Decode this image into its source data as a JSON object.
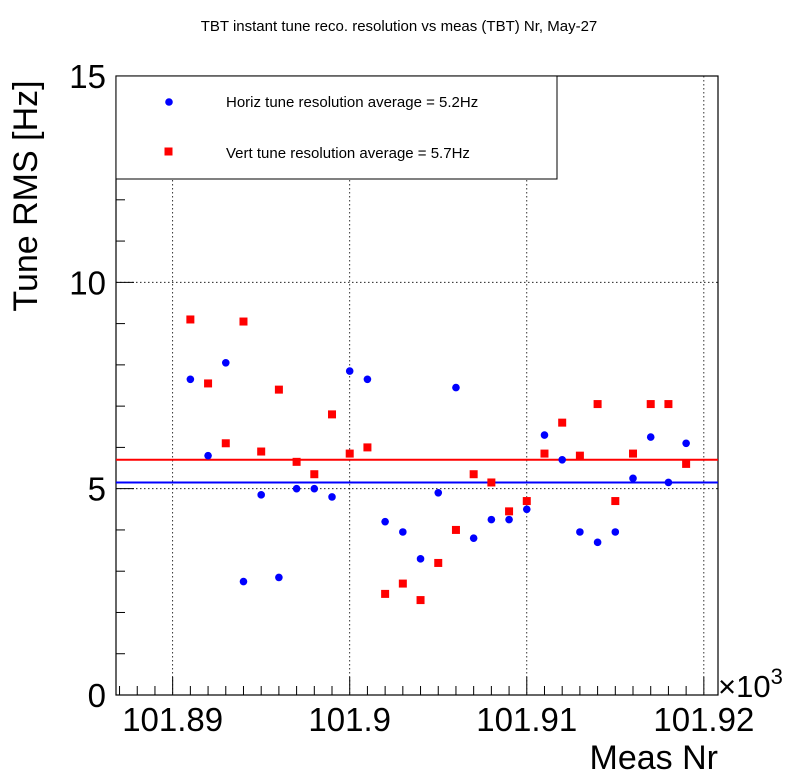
{
  "chart_data": {
    "type": "scatter",
    "title": "TBT instant tune reco. resolution vs meas (TBT) Nr, May-27",
    "xlabel": "Meas Nr",
    "ylabel": "Tune RMS [Hz]",
    "x_multiplier_label": "×10",
    "x_multiplier_exp": "3",
    "xlim": [
      101.8868,
      101.9208
    ],
    "ylim": [
      0,
      15
    ],
    "x_ticks": [
      101.89,
      101.9,
      101.91,
      101.92
    ],
    "x_tick_labels": [
      "101.89",
      "101.9",
      "101.91",
      "101.92"
    ],
    "y_ticks": [
      0,
      5,
      10,
      15
    ],
    "y_tick_labels": [
      "0",
      "5",
      "10",
      "15"
    ],
    "grid": true,
    "legend_position": "top-left",
    "series": [
      {
        "name": "Horiz tune resolution average = 5.2Hz",
        "color": "#0000ff",
        "marker": "circle",
        "average": 5.15,
        "x": [
          101.891,
          101.892,
          101.893,
          101.894,
          101.895,
          101.896,
          101.897,
          101.898,
          101.899,
          101.9,
          101.901,
          101.902,
          101.903,
          101.904,
          101.905,
          101.906,
          101.907,
          101.908,
          101.909,
          101.91,
          101.911,
          101.912,
          101.913,
          101.914,
          101.915,
          101.916,
          101.917,
          101.918,
          101.919
        ],
        "y": [
          7.65,
          5.8,
          8.05,
          2.75,
          4.85,
          2.85,
          5.0,
          5.0,
          4.8,
          7.85,
          7.65,
          4.2,
          3.95,
          3.3,
          4.9,
          7.45,
          3.8,
          4.25,
          4.25,
          4.5,
          6.3,
          5.7,
          3.95,
          3.7,
          3.95,
          5.25,
          6.25,
          5.15,
          6.1
        ]
      },
      {
        "name": "Vert tune resolution average = 5.7Hz",
        "color": "#ff0000",
        "marker": "square",
        "average": 5.7,
        "x": [
          101.891,
          101.892,
          101.893,
          101.894,
          101.895,
          101.896,
          101.897,
          101.898,
          101.899,
          101.9,
          101.901,
          101.902,
          101.903,
          101.904,
          101.905,
          101.906,
          101.907,
          101.908,
          101.909,
          101.91,
          101.911,
          101.912,
          101.913,
          101.914,
          101.915,
          101.916,
          101.917,
          101.918,
          101.919
        ],
        "y": [
          9.1,
          7.55,
          6.1,
          9.05,
          5.9,
          7.4,
          5.65,
          5.35,
          6.8,
          5.85,
          6.0,
          2.45,
          2.7,
          2.3,
          3.2,
          4.0,
          5.35,
          5.15,
          4.45,
          4.7,
          5.85,
          6.6,
          5.8,
          7.05,
          4.7,
          5.85,
          7.05,
          7.05,
          5.6
        ]
      }
    ]
  }
}
